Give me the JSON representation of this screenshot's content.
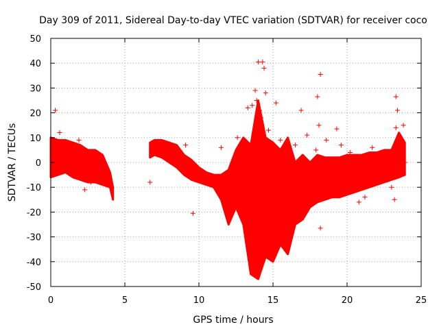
{
  "chart_data": {
    "type": "scatter",
    "title": "Day 309 of 2011, Sidereal Day-to-day VTEC variation (SDTVAR) for receiver coco",
    "xlabel": "GPS time / hours",
    "ylabel": "SDTVAR / TECUs",
    "xlim": [
      0,
      25
    ],
    "ylim": [
      -50,
      50
    ],
    "xticks": [
      "0",
      "5",
      "10",
      "15",
      "20",
      "25"
    ],
    "yticks": [
      "50",
      "40",
      "30",
      "20",
      "10",
      "0",
      "-10",
      "-20",
      "-30",
      "-40",
      "-50"
    ],
    "grid": true,
    "marker": "+",
    "color": "#ff0000",
    "segments": [
      {
        "name": "segment-1",
        "x": [
          0,
          0.5,
          1.0,
          1.5,
          2.0,
          2.5,
          3.0,
          3.5,
          4.0,
          4.2
        ],
        "upper": [
          10,
          9,
          9,
          8,
          7,
          5,
          5,
          3,
          -4,
          -10
        ],
        "lower": [
          -6,
          -5,
          -4,
          -6,
          -7,
          -8,
          -8,
          -9,
          -10,
          -15
        ]
      },
      {
        "name": "segment-2",
        "x": [
          6.7,
          7.0,
          7.5,
          8.0,
          8.5,
          9.0,
          9.5,
          10.0,
          10.5,
          11.0,
          11.5,
          12.0,
          12.5,
          13.0,
          13.5,
          14.0,
          14.5,
          15.0,
          15.5,
          16.0,
          16.5,
          17.0,
          17.5,
          18.0,
          18.5,
          19.0,
          19.5,
          20.0,
          20.5,
          21.0,
          21.5,
          22.0,
          22.5,
          23.0,
          23.5,
          23.9
        ],
        "upper": [
          8,
          9,
          9,
          8,
          7,
          3,
          1,
          -2,
          -4,
          -5,
          -5,
          -3,
          5,
          10,
          7,
          25,
          10,
          8,
          5,
          10,
          0,
          3,
          0,
          3,
          2,
          2,
          2,
          3,
          3,
          3,
          4,
          4,
          5,
          5,
          12,
          8
        ],
        "lower": [
          2,
          3,
          2,
          0,
          -2,
          -5,
          -7,
          -8,
          -9,
          -10,
          -15,
          -25,
          -18,
          -25,
          -45,
          -47,
          -38,
          -40,
          -33,
          -37,
          -25,
          -23,
          -18,
          -16,
          -15,
          -14,
          -14,
          -13,
          -12,
          -11,
          -10,
          -9,
          -8,
          -7,
          -6,
          -5
        ]
      }
    ],
    "outliers": [
      {
        "x": 0.3,
        "y": 21
      },
      {
        "x": 0.6,
        "y": 12
      },
      {
        "x": 1.9,
        "y": 9
      },
      {
        "x": 2.3,
        "y": -11
      },
      {
        "x": 2.7,
        "y": -8
      },
      {
        "x": 3.4,
        "y": -7
      },
      {
        "x": 6.7,
        "y": -8
      },
      {
        "x": 9.1,
        "y": 7
      },
      {
        "x": 9.6,
        "y": -20.5
      },
      {
        "x": 11.5,
        "y": 6
      },
      {
        "x": 12.5,
        "y": 1
      },
      {
        "x": 12.5,
        "y": -10
      },
      {
        "x": 12.6,
        "y": 10
      },
      {
        "x": 13.3,
        "y": 22
      },
      {
        "x": 13.6,
        "y": 2
      },
      {
        "x": 13.6,
        "y": 23
      },
      {
        "x": 13.8,
        "y": 29
      },
      {
        "x": 13.9,
        "y": 25
      },
      {
        "x": 14.0,
        "y": 40.5
      },
      {
        "x": 14.1,
        "y": 21
      },
      {
        "x": 14.2,
        "y": 18
      },
      {
        "x": 14.3,
        "y": 40.5
      },
      {
        "x": 14.4,
        "y": 38
      },
      {
        "x": 14.5,
        "y": 28
      },
      {
        "x": 14.7,
        "y": 13
      },
      {
        "x": 14.9,
        "y": 5
      },
      {
        "x": 15.2,
        "y": 24
      },
      {
        "x": 15.5,
        "y": 9
      },
      {
        "x": 16.0,
        "y": 3
      },
      {
        "x": 16.5,
        "y": 7
      },
      {
        "x": 16.9,
        "y": 21
      },
      {
        "x": 17.3,
        "y": 11
      },
      {
        "x": 17.9,
        "y": 5
      },
      {
        "x": 18.0,
        "y": 26.5
      },
      {
        "x": 18.1,
        "y": 15
      },
      {
        "x": 18.2,
        "y": 35.5
      },
      {
        "x": 18.2,
        "y": -26.5
      },
      {
        "x": 18.6,
        "y": 9
      },
      {
        "x": 19.0,
        "y": -3
      },
      {
        "x": 19.3,
        "y": 13.5
      },
      {
        "x": 19.6,
        "y": 7
      },
      {
        "x": 20.2,
        "y": 4
      },
      {
        "x": 20.8,
        "y": -16
      },
      {
        "x": 21.2,
        "y": -14
      },
      {
        "x": 21.7,
        "y": 6
      },
      {
        "x": 22.2,
        "y": -8
      },
      {
        "x": 23.0,
        "y": -10
      },
      {
        "x": 23.2,
        "y": -15
      },
      {
        "x": 23.3,
        "y": 14
      },
      {
        "x": 23.3,
        "y": 26.5
      },
      {
        "x": 23.4,
        "y": 21
      },
      {
        "x": 23.8,
        "y": 15
      },
      {
        "x": 23.9,
        "y": 0
      }
    ]
  }
}
